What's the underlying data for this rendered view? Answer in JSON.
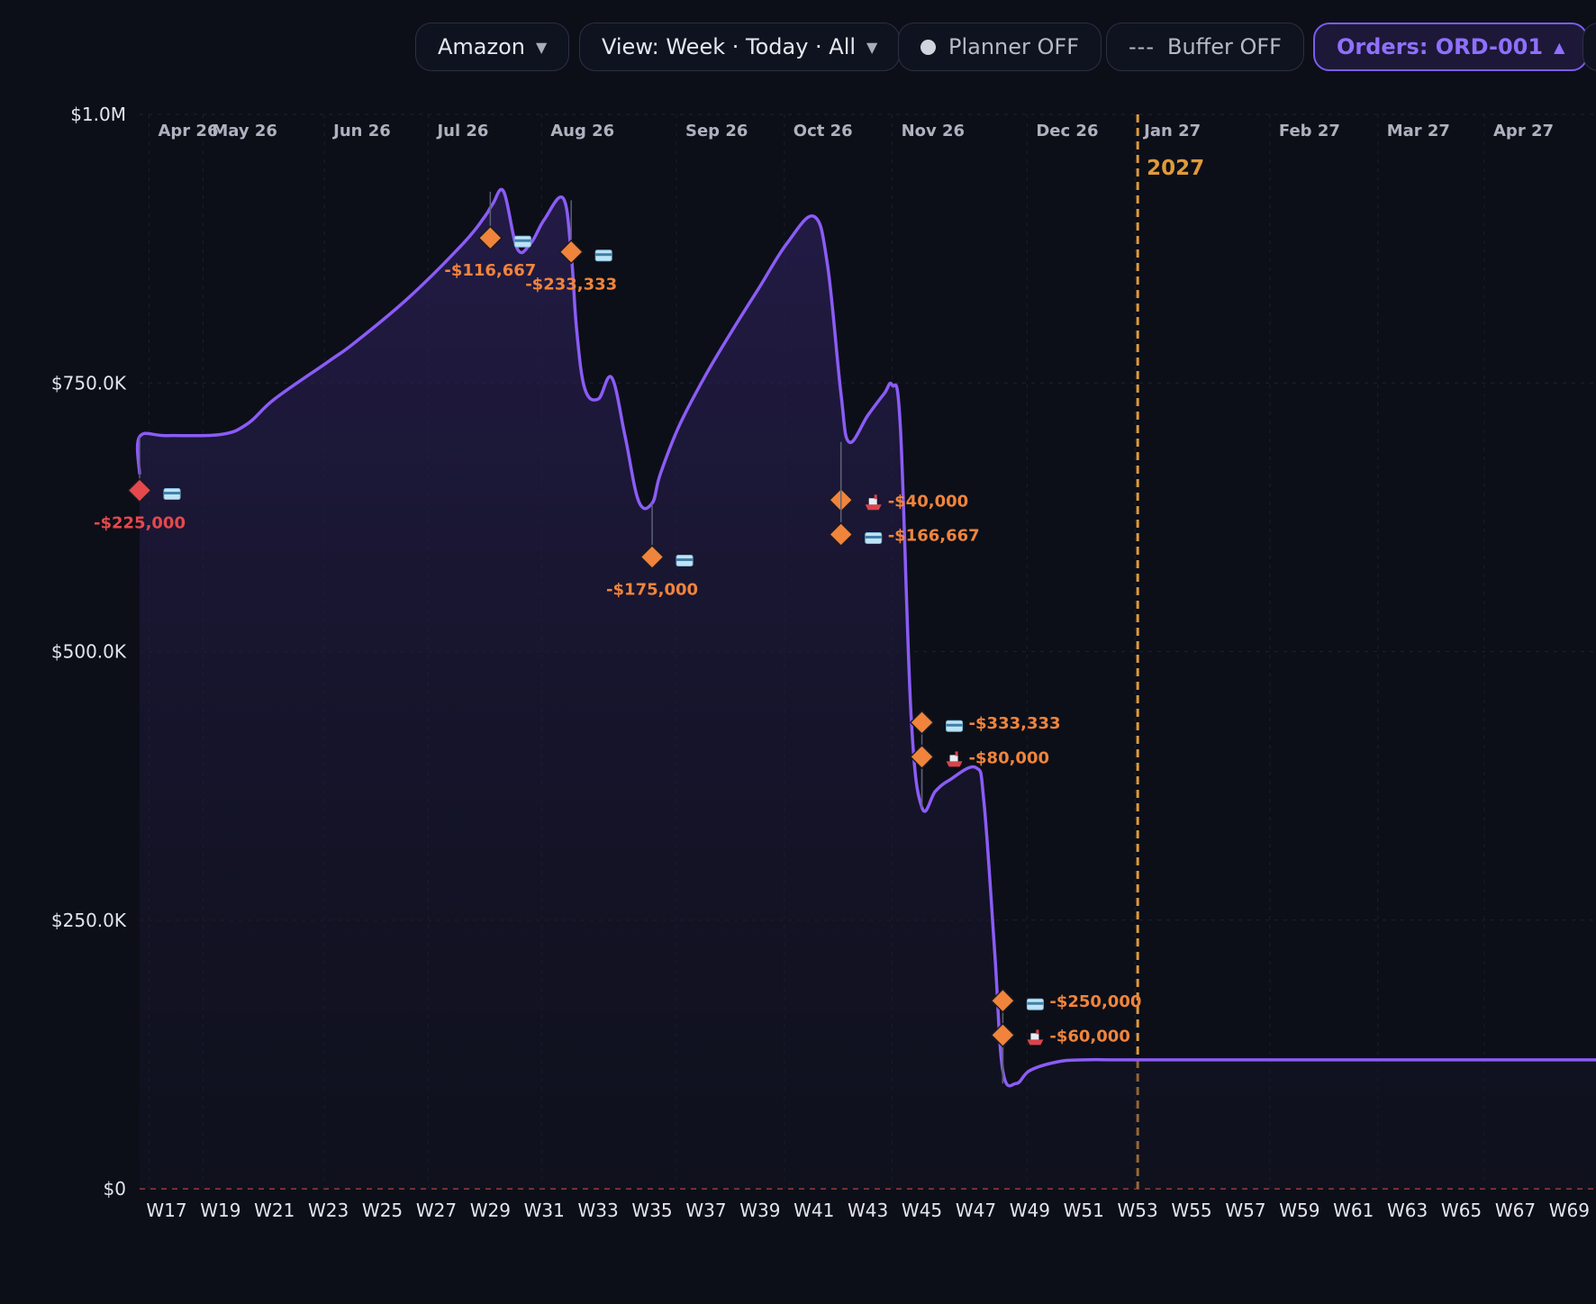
{
  "toolbar": {
    "marketplace": "Amazon",
    "view": "View: Week · Today · All",
    "planner": "Planner OFF",
    "buffer_dashes": "---",
    "buffer": "Buffer OFF",
    "orders": "Orders: ORD-001"
  },
  "chart_data": {
    "type": "line",
    "title": "",
    "xlabel": "",
    "ylabel": "",
    "ylim": [
      0,
      1000000
    ],
    "y_ticks": [
      {
        "value": 1000000,
        "label": "$1.0M"
      },
      {
        "value": 750000,
        "label": "$750.0K"
      },
      {
        "value": 500000,
        "label": "$500.0K"
      },
      {
        "value": 250000,
        "label": "$250.0K"
      },
      {
        "value": 0,
        "label": "$0"
      }
    ],
    "x_range": [
      16,
      70
    ],
    "week_ticks": [
      {
        "week": 17,
        "label": "W17"
      },
      {
        "week": 19,
        "label": "W19"
      },
      {
        "week": 21,
        "label": "W21"
      },
      {
        "week": 23,
        "label": "W23"
      },
      {
        "week": 25,
        "label": "W25"
      },
      {
        "week": 27,
        "label": "W27"
      },
      {
        "week": 29,
        "label": "W29"
      },
      {
        "week": 31,
        "label": "W31"
      },
      {
        "week": 33,
        "label": "W33"
      },
      {
        "week": 35,
        "label": "W35"
      },
      {
        "week": 37,
        "label": "W37"
      },
      {
        "week": 39,
        "label": "W39"
      },
      {
        "week": 41,
        "label": "W41"
      },
      {
        "week": 43,
        "label": "W43"
      },
      {
        "week": 45,
        "label": "W45"
      },
      {
        "week": 47,
        "label": "W47"
      },
      {
        "week": 49,
        "label": "W49"
      },
      {
        "week": 51,
        "label": "W51"
      },
      {
        "week": 53,
        "label": "W53"
      },
      {
        "week": 55,
        "label": "W55"
      },
      {
        "week": 57,
        "label": "W57"
      },
      {
        "week": 59,
        "label": "W59"
      },
      {
        "week": 61,
        "label": "W61"
      },
      {
        "week": 63,
        "label": "W63"
      },
      {
        "week": 65,
        "label": "W65"
      },
      {
        "week": 67,
        "label": "W67"
      },
      {
        "week": 69,
        "label": "W69"
      }
    ],
    "month_ticks": [
      {
        "week": 16.35,
        "label": "Apr 26"
      },
      {
        "week": 18.35,
        "label": "May 26"
      },
      {
        "week": 22.85,
        "label": "Jun 26"
      },
      {
        "week": 26.7,
        "label": "Jul 26"
      },
      {
        "week": 30.9,
        "label": "Aug 26"
      },
      {
        "week": 35.9,
        "label": "Sep 26"
      },
      {
        "week": 39.9,
        "label": "Oct 26"
      },
      {
        "week": 43.9,
        "label": "Nov 26"
      },
      {
        "week": 48.9,
        "label": "Dec 26"
      },
      {
        "week": 52.9,
        "label": "Jan 27"
      },
      {
        "week": 57.9,
        "label": "Feb 27"
      },
      {
        "week": 61.9,
        "label": "Mar 27"
      },
      {
        "week": 65.85,
        "label": "Apr 27"
      }
    ],
    "year_marker": {
      "week": 53,
      "label": "2027"
    },
    "grid": true,
    "legend": "none",
    "series": [
      {
        "color": "#8b5cf6",
        "x": [
          16,
          16,
          17,
          19,
          20,
          21,
          23,
          24,
          26,
          28,
          28.8,
          29.1,
          29.5,
          30,
          30.5,
          31,
          31.7,
          32,
          32.2,
          32.5,
          33,
          33.5,
          34,
          34.5,
          35,
          35.3,
          36,
          37,
          38,
          39,
          40,
          41,
          41.5,
          42,
          42.3,
          43,
          43.6,
          43.9,
          44.2,
          44.6,
          45,
          45.5,
          46,
          47,
          47.3,
          47.7,
          48,
          48.5,
          49,
          50,
          51,
          53,
          60,
          70
        ],
        "y": [
          665000,
          700000,
          701000,
          702000,
          712000,
          735000,
          770000,
          788000,
          830000,
          880000,
          905000,
          917000,
          928000,
          875000,
          880000,
          902000,
          922000,
          870000,
          800000,
          745000,
          735000,
          755000,
          700000,
          640000,
          638000,
          665000,
          710000,
          758000,
          800000,
          840000,
          880000,
          905000,
          860000,
          740000,
          695000,
          720000,
          740000,
          748000,
          710000,
          440000,
          355000,
          370000,
          380000,
          392000,
          360000,
          220000,
          110000,
          98000,
          110000,
          118000,
          120000,
          120000,
          120000,
          120000
        ]
      }
    ],
    "events": [
      {
        "week": 16,
        "line_value": 700000,
        "value": 650000,
        "label": "-$225,000",
        "icon": "card-icon",
        "color": "#e5484d"
      },
      {
        "week": 29,
        "line_value": 928000,
        "value": 885000,
        "label": "-$116,667",
        "icon": "card-icon",
        "color": "#f0843c"
      },
      {
        "week": 32,
        "line_value": 920000,
        "value": 872000,
        "label": "-$233,333",
        "icon": "card-icon",
        "color": "#f0843c"
      },
      {
        "week": 35,
        "line_value": 638000,
        "value": 588000,
        "label": "-$175,000",
        "icon": "card-icon",
        "color": "#f0843c"
      },
      {
        "week": 42,
        "line_value": 695000,
        "value": 641000,
        "label": "-$40,000",
        "icon": "ship-icon",
        "color": "#f0843c"
      },
      {
        "week": 42,
        "line_value": 695000,
        "value": 609000,
        "label": "-$166,667",
        "icon": "card-icon",
        "color": "#f0843c"
      },
      {
        "week": 45,
        "line_value": 355000,
        "value": 434000,
        "label": "-$333,333",
        "icon": "card-icon",
        "color": "#f0843c"
      },
      {
        "week": 45,
        "line_value": 355000,
        "value": 402000,
        "label": "-$80,000",
        "icon": "ship-icon",
        "color": "#f0843c"
      },
      {
        "week": 48,
        "line_value": 98000,
        "value": 175000,
        "label": "-$250,000",
        "icon": "card-icon",
        "color": "#f0843c"
      },
      {
        "week": 48,
        "line_value": 98000,
        "value": 143000,
        "label": "-$60,000",
        "icon": "ship-icon",
        "color": "#f0843c"
      }
    ],
    "colors": {
      "line": "#8b5cf6",
      "event": "#f0843c",
      "event_first": "#e5484d",
      "year_marker": "#e09a3a",
      "zero_line": "#b4443f"
    }
  }
}
